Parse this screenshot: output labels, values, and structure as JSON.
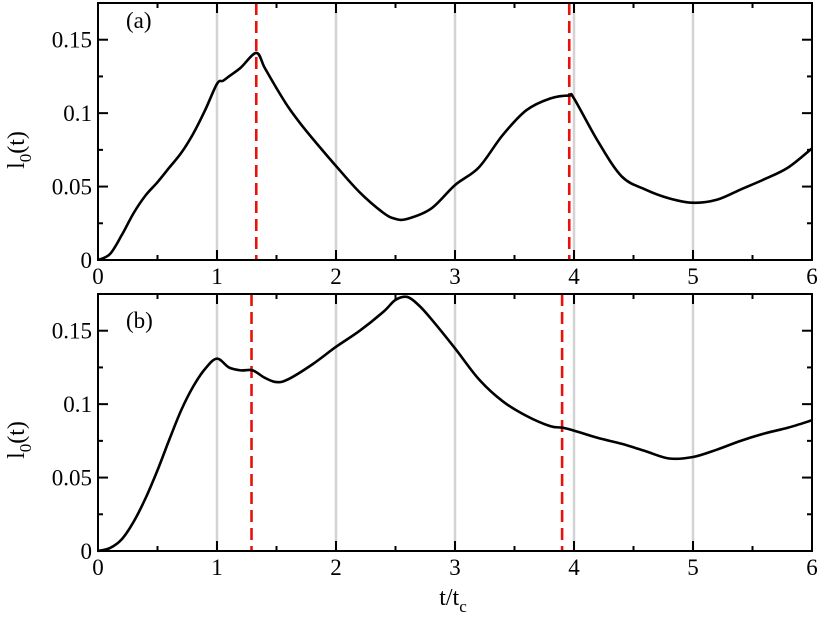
{
  "colors": {
    "curve": "#000000",
    "marker_line": "#e8120c",
    "grid_line": "#d3d3d3",
    "frame": "#000000"
  },
  "xlabel": {
    "main": "t/t",
    "sub": "c"
  },
  "chart_data": [
    {
      "type": "line",
      "panel_label": "(a)",
      "ylabel": {
        "main": "l",
        "sub": "0",
        "tail": "(t)"
      },
      "xlim": [
        0,
        6
      ],
      "ylim": [
        0,
        0.175
      ],
      "xticks": [
        0,
        1,
        2,
        3,
        4,
        5,
        6
      ],
      "xtick_labels": [
        "0",
        "1",
        "2",
        "3",
        "4",
        "5",
        "6"
      ],
      "yticks": [
        0,
        0.05,
        0.1,
        0.15
      ],
      "ytick_labels": [
        "0",
        "0.05",
        "0.1",
        "0.15"
      ],
      "grid_x": [
        1,
        2,
        3,
        4,
        5
      ],
      "dashed_lines": [
        1.33,
        3.96
      ],
      "x": [
        0,
        0.1,
        0.2,
        0.3,
        0.4,
        0.5,
        0.6,
        0.7,
        0.8,
        0.9,
        1.0,
        1.05,
        1.1,
        1.2,
        1.33,
        1.4,
        1.5,
        1.6,
        1.7,
        1.8,
        2.0,
        2.2,
        2.4,
        2.5,
        2.6,
        2.8,
        3.0,
        3.2,
        3.4,
        3.6,
        3.8,
        3.96,
        4.0,
        4.2,
        4.4,
        4.6,
        4.8,
        5.0,
        5.2,
        5.4,
        5.6,
        5.8,
        6.0
      ],
      "y": [
        0,
        0.004,
        0.017,
        0.032,
        0.044,
        0.053,
        0.063,
        0.073,
        0.086,
        0.102,
        0.12,
        0.122,
        0.125,
        0.131,
        0.141,
        0.131,
        0.117,
        0.104,
        0.093,
        0.083,
        0.064,
        0.046,
        0.032,
        0.028,
        0.028,
        0.035,
        0.051,
        0.063,
        0.085,
        0.102,
        0.11,
        0.112,
        0.11,
        0.081,
        0.057,
        0.048,
        0.042,
        0.039,
        0.041,
        0.048,
        0.055,
        0.063,
        0.076
      ]
    },
    {
      "type": "line",
      "panel_label": "(b)",
      "ylabel": {
        "main": "l",
        "sub": "0",
        "tail": "(t)"
      },
      "xlim": [
        0,
        6
      ],
      "ylim": [
        0,
        0.175
      ],
      "xticks": [
        0,
        1,
        2,
        3,
        4,
        5,
        6
      ],
      "xtick_labels": [
        "0",
        "1",
        "2",
        "3",
        "4",
        "5",
        "6"
      ],
      "yticks": [
        0,
        0.05,
        0.1,
        0.15
      ],
      "ytick_labels": [
        "0",
        "0.05",
        "0.1",
        "0.15"
      ],
      "grid_x": [
        1,
        2,
        3,
        4,
        5
      ],
      "dashed_lines": [
        1.29,
        3.9
      ],
      "x": [
        0,
        0.1,
        0.2,
        0.3,
        0.4,
        0.5,
        0.6,
        0.7,
        0.8,
        0.9,
        1.0,
        1.1,
        1.2,
        1.3,
        1.4,
        1.5,
        1.6,
        1.8,
        2.0,
        2.2,
        2.4,
        2.5,
        2.6,
        2.7,
        2.8,
        3.0,
        3.2,
        3.4,
        3.6,
        3.8,
        3.9,
        4.0,
        4.2,
        4.4,
        4.6,
        4.8,
        5.0,
        5.2,
        5.4,
        5.6,
        5.8,
        6.0
      ],
      "y": [
        0,
        0.002,
        0.008,
        0.02,
        0.036,
        0.055,
        0.076,
        0.096,
        0.112,
        0.124,
        0.131,
        0.125,
        0.123,
        0.123,
        0.118,
        0.115,
        0.117,
        0.127,
        0.139,
        0.15,
        0.163,
        0.171,
        0.173,
        0.167,
        0.158,
        0.138,
        0.117,
        0.102,
        0.092,
        0.085,
        0.084,
        0.082,
        0.077,
        0.073,
        0.068,
        0.063,
        0.064,
        0.069,
        0.075,
        0.08,
        0.084,
        0.089
      ]
    }
  ]
}
